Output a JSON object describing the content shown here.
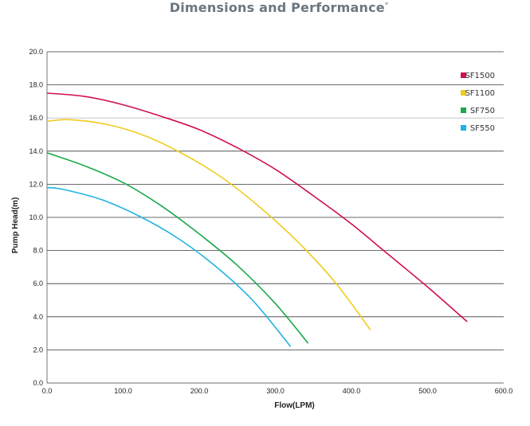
{
  "title": "Dimensions and Performance",
  "title_mark": "*",
  "chart_data": {
    "type": "line",
    "title": "Dimensions and Performance",
    "xlabel": "Flow(LPM)",
    "ylabel": "Pump Head(m)",
    "xlim": [
      0,
      600
    ],
    "ylim": [
      0,
      20
    ],
    "xticks": [
      "0.0",
      "100.0",
      "200.0",
      "300.0",
      "400.0",
      "500.0",
      "600.0"
    ],
    "yticks": [
      "0.0",
      "2.0",
      "4.0",
      "6.0",
      "8.0",
      "10.0",
      "12.0",
      "14.0",
      "16.0",
      "18.0",
      "20.0"
    ],
    "grid": "horizontal",
    "legend_position": "top-right",
    "series": [
      {
        "name": "SF1500",
        "color": "#d0104c",
        "x": [
          0,
          50,
          100,
          150,
          200,
          250,
          300,
          350,
          400,
          450,
          500,
          552
        ],
        "y": [
          17.5,
          17.3,
          16.8,
          16.1,
          15.3,
          14.2,
          12.9,
          11.3,
          9.6,
          7.7,
          5.8,
          3.7
        ]
      },
      {
        "name": "SF1100",
        "color": "#f0cc1f",
        "x": [
          0,
          30,
          80,
          130,
          180,
          230,
          280,
          330,
          380,
          425
        ],
        "y": [
          15.8,
          15.9,
          15.6,
          14.9,
          13.8,
          12.4,
          10.6,
          8.5,
          6.0,
          3.2
        ]
      },
      {
        "name": "SF750",
        "color": "#1aaa49",
        "x": [
          0,
          50,
          100,
          150,
          200,
          250,
          300,
          343
        ],
        "y": [
          13.9,
          13.1,
          12.1,
          10.7,
          9.0,
          7.1,
          4.8,
          2.4
        ]
      },
      {
        "name": "SF550",
        "color": "#20b3e3",
        "x": [
          0,
          20,
          70,
          120,
          170,
          220,
          270,
          320
        ],
        "y": [
          11.8,
          11.7,
          11.1,
          10.1,
          8.8,
          7.1,
          5.0,
          2.2
        ]
      }
    ]
  }
}
